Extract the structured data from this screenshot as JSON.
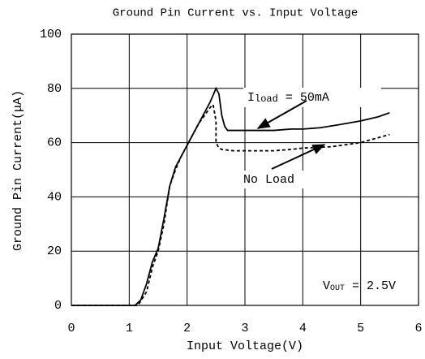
{
  "chart_data": {
    "type": "line",
    "title": "Ground Pin Current vs. Input Voltage",
    "xlabel": "Input Voltage(V)",
    "ylabel": "Ground Pin Current(μA)",
    "xlim": [
      0,
      6
    ],
    "xticks": [
      0,
      1,
      2,
      3,
      4,
      5,
      6
    ],
    "ylim": [
      0,
      100
    ],
    "yticks": [
      0,
      20,
      40,
      60,
      80,
      100
    ],
    "grid": true,
    "annotations": [
      {
        "parts": [
          "I",
          "load",
          " = 50mA"
        ]
      },
      {
        "parts": [
          "No Load"
        ]
      },
      {
        "parts": [
          "V",
          "OUT",
          " = 2.5V"
        ]
      }
    ],
    "series": [
      {
        "name": "50mA",
        "color": "#000000",
        "dash": false,
        "x": [
          0,
          1,
          1.1,
          1.2,
          1.3,
          1.4,
          1.5,
          1.6,
          1.7,
          1.8,
          1.9,
          2.0,
          2.1,
          2.2,
          2.3,
          2.4,
          2.5,
          2.55,
          2.6,
          2.65,
          2.7,
          3,
          3.5,
          3.8,
          4,
          4.3,
          4.6,
          5,
          5.3,
          5.5
        ],
        "values": [
          0,
          0,
          0,
          2,
          8,
          16,
          21,
          32,
          44,
          51,
          55,
          59,
          63,
          67,
          71,
          75,
          80,
          78,
          70,
          66,
          64.5,
          64.5,
          64.5,
          65,
          65,
          65.5,
          66.5,
          68,
          69.5,
          71
        ]
      },
      {
        "name": "No Load",
        "color": "#000000",
        "dash": true,
        "x": [
          0,
          1,
          1.15,
          1.3,
          1.4,
          1.5,
          1.6,
          1.7,
          1.8,
          1.9,
          2.0,
          2.1,
          2.2,
          2.3,
          2.4,
          2.45,
          2.5,
          2.5,
          2.55,
          2.6,
          2.8,
          3.5,
          3.8,
          4,
          4.5,
          5,
          5.5
        ],
        "values": [
          0,
          0,
          0,
          5,
          14,
          20,
          30,
          44,
          50,
          55,
          59,
          63,
          67,
          70,
          73,
          74,
          68,
          60,
          58,
          57.5,
          57,
          57,
          57.5,
          58,
          58.5,
          60,
          63
        ]
      }
    ]
  }
}
